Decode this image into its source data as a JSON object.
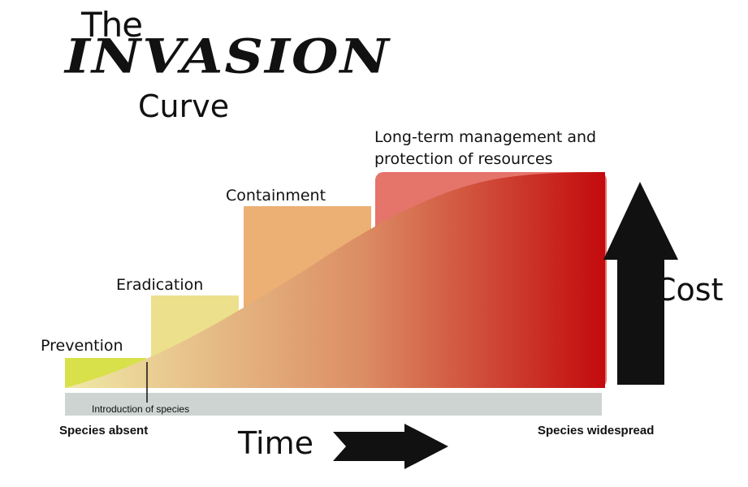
{
  "title": {
    "line1": "The",
    "line2": "INVASION",
    "line3": "Curve"
  },
  "stages": [
    {
      "label": "Prevention",
      "color": "#d8e04a"
    },
    {
      "label": "Eradication",
      "color": "#ede08c"
    },
    {
      "label": "Containment",
      "color": "#ecaf74"
    },
    {
      "label": "Long-term management and protection of resources",
      "line1": "Long-term management and",
      "line2": "protection of resources",
      "color": "#e5746a"
    }
  ],
  "curve_colors": {
    "start": "#efe9a6",
    "middle": "#dc8d64",
    "end": "#c30a0d"
  },
  "timeline": {
    "bar_color": "#cdd4d1",
    "marker_label": "Introduction of species",
    "start_label": "Species absent",
    "end_label": "Species widespread",
    "axis_label": "Time"
  },
  "cost": {
    "label": "Cost"
  },
  "arrow_color": "#111111"
}
